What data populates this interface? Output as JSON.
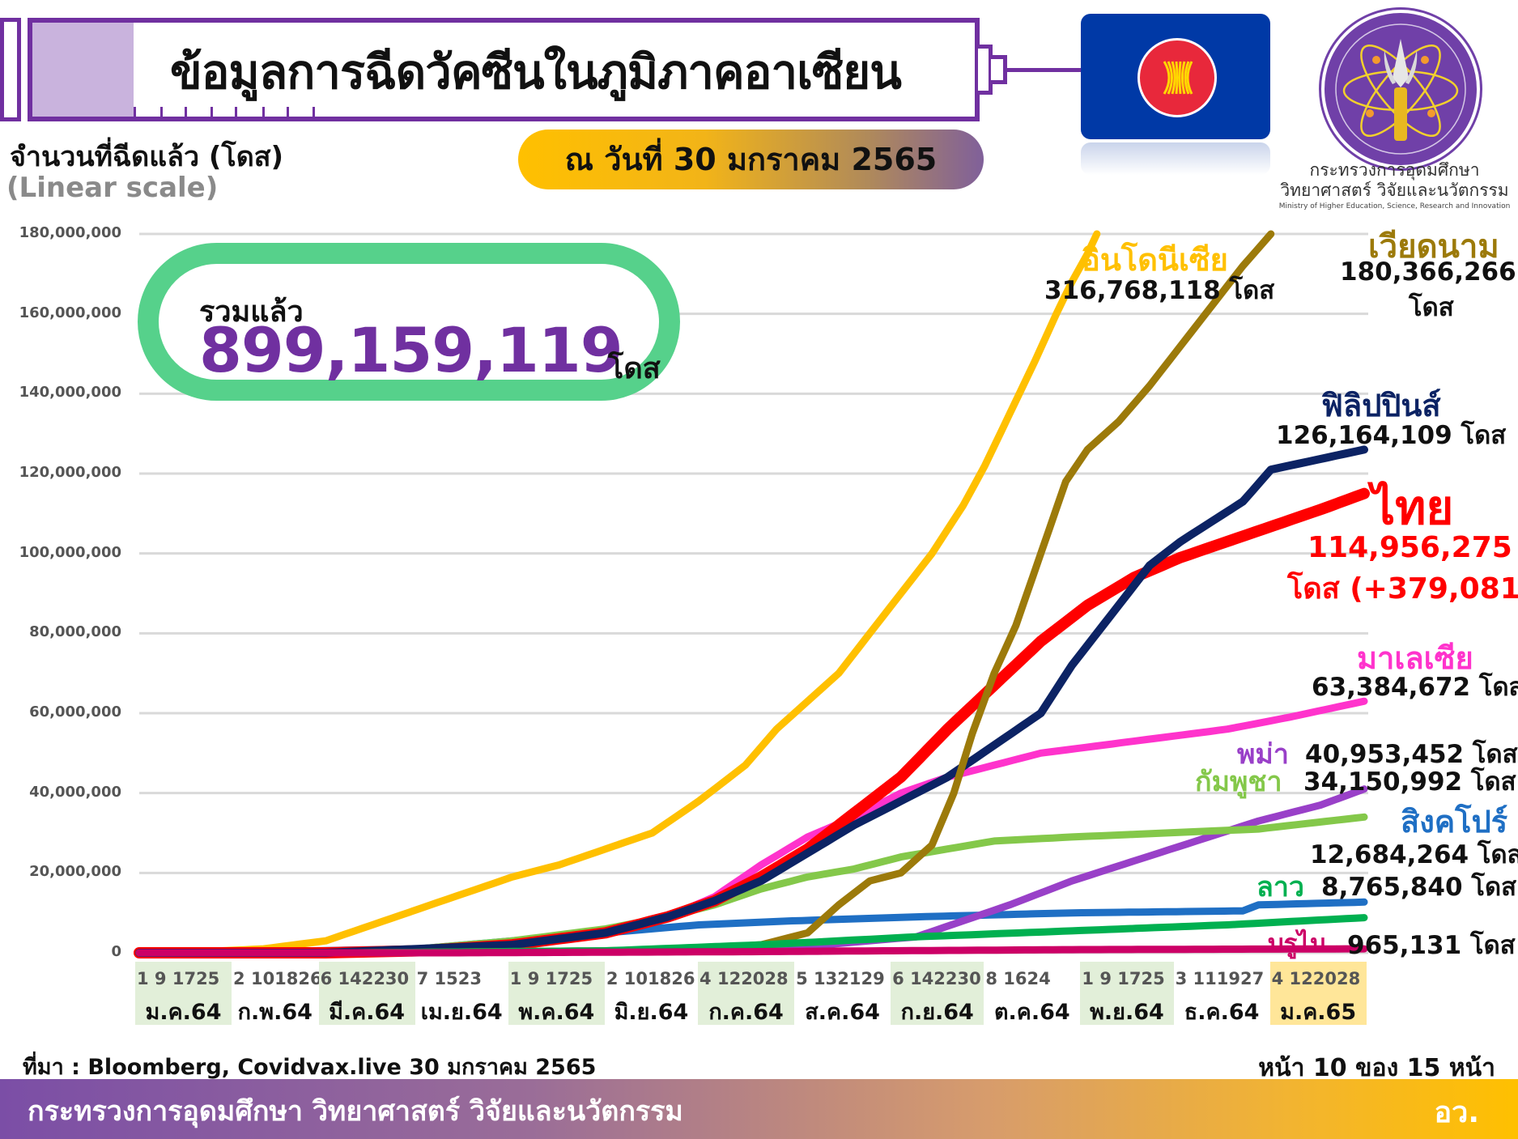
{
  "header": {
    "title": "ข้อมูลการฉีดวัคซีนในภูมิภาคอาเซียน",
    "date_pill": "ณ วันที่ 30 มกราคม 2565",
    "flag_icon": "asean-flag-icon",
    "ministry_logo": {
      "icon": "ministry-emblem-icon",
      "name_th_line1": "กระทรวงการอุดมศึกษา",
      "name_th_line2": "วิทยาศาสตร์ วิจัยและนวัตกรรม",
      "name_en": "Ministry of Higher Education, Science, Research and Innovation"
    }
  },
  "axis": {
    "y_title": "จำนวนที่ฉีดแล้ว (โดส)",
    "y_scale_note": "(Linear scale)"
  },
  "total": {
    "label": "รวมแล้ว",
    "value": "899,159,119",
    "unit": "โดส"
  },
  "series_labels": {
    "indonesia": {
      "name": "อินโดนีเซีย",
      "value": "316,768,118 โดส",
      "color": "#ffc000"
    },
    "vietnam": {
      "name": "เวียดนาม",
      "value": "180,366,266",
      "unit": "โดส",
      "color": "#9c7a0a"
    },
    "philippines": {
      "name": "ฟิลิปปินส์",
      "value": "126,164,109 โดส",
      "color": "#0c2364"
    },
    "thailand": {
      "name": "ไทย",
      "value": "114,956,275",
      "value2": "โดส (+379,081)",
      "color": "#ff0000"
    },
    "malaysia": {
      "name": "มาเลเซีย",
      "value": "63,384,672 โดส",
      "color": "#ff33cc"
    },
    "myanmar": {
      "name": "พม่า",
      "value": "40,953,452 โดส",
      "color": "#9940c8"
    },
    "cambodia": {
      "name": "กัมพูชา",
      "value": "34,150,992 โดส",
      "color": "#84c84a"
    },
    "singapore": {
      "name": "สิงคโปร์",
      "value": "12,684,264 โดส",
      "color": "#1f6fc4"
    },
    "laos": {
      "name": "ลาว",
      "value": "8,765,840 โดส",
      "color": "#00b050"
    },
    "brunei": {
      "name": "บรูไน",
      "value": "965,131 โดส",
      "color": "#cc0066"
    }
  },
  "footer": {
    "source": "ที่มา : Bloomberg, Covidvax.live 30 มกราคม 2565",
    "page": "หน้า 10 ของ 15 หน้า",
    "ministry": "กระทรวงการอุดมศึกษา วิทยาศาสตร์ วิจัยและนวัตกรรม",
    "dept": "อว."
  },
  "chart_data": {
    "type": "line",
    "title": "ข้อมูลการฉีดวัคซีนในภูมิภาคอาเซียน",
    "subtitle": "ณ วันที่ 30 มกราคม 2565",
    "xlabel": "",
    "ylabel": "จำนวนที่ฉีดแล้ว (โดส) (Linear scale)",
    "ylim": [
      0,
      180000000
    ],
    "yticks": [
      "0",
      "20,000,000",
      "40,000,000",
      "60,000,000",
      "80,000,000",
      "100,000,000",
      "120,000,000",
      "140,000,000",
      "160,000,000",
      "180,000,000"
    ],
    "grid": true,
    "legend_position": "right (inline labels)",
    "x_months": [
      {
        "label": "ม.ค.64",
        "days": "1 9 1725",
        "shaded": true
      },
      {
        "label": "ก.พ.64",
        "days": "2 101826",
        "shaded": false
      },
      {
        "label": "มี.ค.64",
        "days": "6 142230",
        "shaded": true
      },
      {
        "label": "เม.ย.64",
        "days": "7 1523",
        "shaded": false
      },
      {
        "label": "พ.ค.64",
        "days": "1 9 1725",
        "shaded": true
      },
      {
        "label": "มิ.ย.64",
        "days": "2 101826",
        "shaded": false
      },
      {
        "label": "ก.ค.64",
        "days": "4 122028",
        "shaded": true
      },
      {
        "label": "ส.ค.64",
        "days": "5 132129",
        "shaded": false
      },
      {
        "label": "ก.ย.64",
        "days": "6 142230",
        "shaded": true
      },
      {
        "label": "ต.ค.64",
        "days": "8 1624",
        "shaded": false
      },
      {
        "label": "พ.ย.64",
        "days": "1 9 1725",
        "shaded": true
      },
      {
        "label": "ธ.ค.64",
        "days": "3 111927",
        "shaded": false
      },
      {
        "label": "ม.ค.65",
        "days": "4 122028",
        "shaded": "highlight"
      }
    ],
    "x_note": "days since 2021-01-01; values in millions of doses (approximate, read from chart)",
    "series": [
      {
        "name": "อินโดนีเซีย",
        "color": "#ffc000",
        "final": 316768118,
        "points": [
          [
            0,
            0
          ],
          [
            13,
            0
          ],
          [
            40,
            1
          ],
          [
            60,
            3
          ],
          [
            75,
            7
          ],
          [
            90,
            11
          ],
          [
            105,
            15
          ],
          [
            120,
            19
          ],
          [
            135,
            22
          ],
          [
            150,
            26
          ],
          [
            165,
            30
          ],
          [
            180,
            38
          ],
          [
            195,
            47
          ],
          [
            205,
            56
          ],
          [
            215,
            63
          ],
          [
            225,
            70
          ],
          [
            235,
            80
          ],
          [
            245,
            90
          ],
          [
            255,
            100
          ],
          [
            265,
            112
          ],
          [
            272,
            122
          ],
          [
            280,
            135
          ],
          [
            288,
            148
          ],
          [
            295,
            160
          ],
          [
            300,
            168
          ],
          [
            305,
            175
          ],
          [
            308,
            180
          ]
        ]
      },
      {
        "name": "เวียดนาม",
        "color": "#9c7a0a",
        "final": 180366266,
        "points": [
          [
            0,
            0
          ],
          [
            70,
            0
          ],
          [
            150,
            0.5
          ],
          [
            180,
            1
          ],
          [
            200,
            2
          ],
          [
            215,
            5
          ],
          [
            225,
            12
          ],
          [
            235,
            18
          ],
          [
            245,
            20
          ],
          [
            255,
            27
          ],
          [
            262,
            40
          ],
          [
            268,
            55
          ],
          [
            275,
            70
          ],
          [
            282,
            82
          ],
          [
            290,
            100
          ],
          [
            298,
            118
          ],
          [
            305,
            126
          ],
          [
            315,
            133
          ],
          [
            325,
            142
          ],
          [
            335,
            152
          ],
          [
            345,
            162
          ],
          [
            355,
            172
          ],
          [
            364,
            180
          ]
        ]
      },
      {
        "name": "ฟิลิปปินส์",
        "color": "#0c2364",
        "final": 126164109,
        "points": [
          [
            0,
            0
          ],
          [
            60,
            0
          ],
          [
            90,
            1
          ],
          [
            120,
            2
          ],
          [
            150,
            5
          ],
          [
            170,
            9
          ],
          [
            185,
            13
          ],
          [
            200,
            18
          ],
          [
            215,
            25
          ],
          [
            230,
            32
          ],
          [
            245,
            38
          ],
          [
            260,
            44
          ],
          [
            275,
            52
          ],
          [
            290,
            60
          ],
          [
            300,
            72
          ],
          [
            310,
            82
          ],
          [
            318,
            90
          ],
          [
            325,
            97
          ],
          [
            335,
            103
          ],
          [
            345,
            108
          ],
          [
            355,
            113
          ],
          [
            364,
            121
          ],
          [
            394,
            126
          ]
        ]
      },
      {
        "name": "ไทย",
        "color": "#ff0000",
        "final": 114956275,
        "points": [
          [
            0,
            0
          ],
          [
            60,
            0
          ],
          [
            90,
            0.5
          ],
          [
            120,
            2
          ],
          [
            150,
            5
          ],
          [
            170,
            9
          ],
          [
            185,
            13
          ],
          [
            200,
            19
          ],
          [
            215,
            26
          ],
          [
            230,
            35
          ],
          [
            245,
            44
          ],
          [
            260,
            56
          ],
          [
            275,
            67
          ],
          [
            290,
            78
          ],
          [
            305,
            87
          ],
          [
            320,
            94
          ],
          [
            335,
            99
          ],
          [
            350,
            103
          ],
          [
            365,
            107
          ],
          [
            380,
            111
          ],
          [
            394,
            115
          ]
        ]
      },
      {
        "name": "มาเลเซีย",
        "color": "#ff33cc",
        "final": 63384672,
        "points": [
          [
            0,
            0
          ],
          [
            55,
            0
          ],
          [
            90,
            0.5
          ],
          [
            120,
            2
          ],
          [
            150,
            5
          ],
          [
            170,
            9
          ],
          [
            185,
            14
          ],
          [
            200,
            22
          ],
          [
            215,
            29
          ],
          [
            230,
            34
          ],
          [
            245,
            40
          ],
          [
            260,
            44
          ],
          [
            275,
            47
          ],
          [
            290,
            50
          ],
          [
            310,
            52
          ],
          [
            330,
            54
          ],
          [
            350,
            56
          ],
          [
            370,
            59
          ],
          [
            394,
            63
          ]
        ]
      },
      {
        "name": "พม่า",
        "color": "#9940c8",
        "final": 40953452,
        "points": [
          [
            0,
            0
          ],
          [
            40,
            0
          ],
          [
            200,
            0.5
          ],
          [
            220,
            2
          ],
          [
            250,
            4
          ],
          [
            265,
            8
          ],
          [
            280,
            12
          ],
          [
            300,
            18
          ],
          [
            320,
            23
          ],
          [
            340,
            28
          ],
          [
            360,
            33
          ],
          [
            380,
            37
          ],
          [
            394,
            41
          ]
        ]
      },
      {
        "name": "กัมพูชา",
        "color": "#84c84a",
        "final": 34150992,
        "points": [
          [
            0,
            0
          ],
          [
            45,
            0
          ],
          [
            90,
            1
          ],
          [
            120,
            3
          ],
          [
            150,
            6
          ],
          [
            170,
            9
          ],
          [
            185,
            12
          ],
          [
            200,
            16
          ],
          [
            215,
            19
          ],
          [
            230,
            21
          ],
          [
            245,
            24
          ],
          [
            260,
            26
          ],
          [
            275,
            28
          ],
          [
            300,
            29
          ],
          [
            330,
            30
          ],
          [
            360,
            31
          ],
          [
            394,
            34
          ]
        ]
      },
      {
        "name": "สิงคโปร์",
        "color": "#1f6fc4",
        "final": 12684264,
        "points": [
          [
            0,
            0
          ],
          [
            30,
            0.1
          ],
          [
            90,
            1
          ],
          [
            120,
            3
          ],
          [
            150,
            5
          ],
          [
            180,
            7
          ],
          [
            210,
            8
          ],
          [
            250,
            9
          ],
          [
            300,
            10
          ],
          [
            355,
            10.5
          ],
          [
            360,
            12
          ],
          [
            394,
            12.7
          ]
        ]
      },
      {
        "name": "ลาว",
        "color": "#00b050",
        "final": 8765840,
        "points": [
          [
            0,
            0
          ],
          [
            70,
            0
          ],
          [
            150,
            0.5
          ],
          [
            200,
            2
          ],
          [
            250,
            4
          ],
          [
            300,
            5.5
          ],
          [
            350,
            7
          ],
          [
            394,
            8.8
          ]
        ]
      },
      {
        "name": "บรูไน",
        "color": "#cc0066",
        "final": 965131,
        "points": [
          [
            0,
            0
          ],
          [
            100,
            0
          ],
          [
            200,
            0.3
          ],
          [
            300,
            0.8
          ],
          [
            394,
            1
          ]
        ]
      }
    ]
  }
}
